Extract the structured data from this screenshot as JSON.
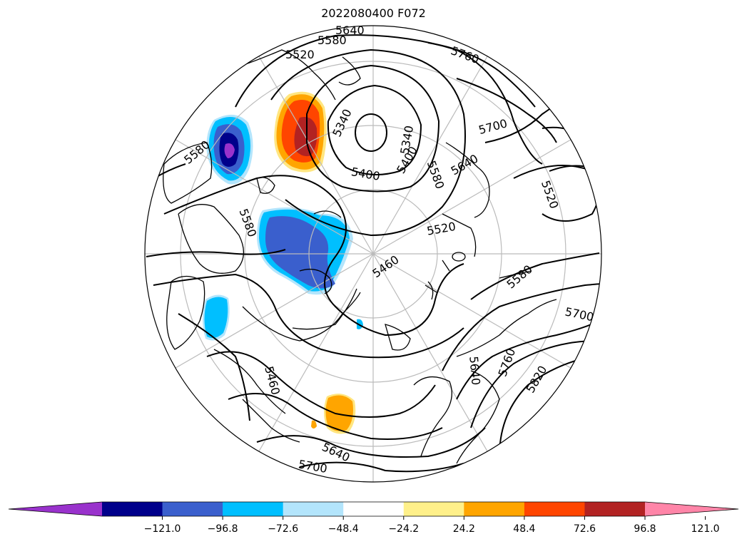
{
  "title": "2022080400 F072",
  "map": {
    "projection": "north-polar-stereographic",
    "contour_variable": "500 hPa geopotential height (m)",
    "fill_variable": "height anomaly",
    "graticule_color": "#bbbbbb",
    "coast_color": "#000000",
    "contour_color": "#000000"
  },
  "contour_labels": [
    "5640",
    "5580",
    "5520",
    "5340",
    "5340",
    "5400",
    "5400",
    "5700",
    "5760",
    "5640",
    "5580",
    "5520",
    "5520",
    "5460",
    "5580",
    "5700",
    "5640",
    "5760",
    "5820",
    "5460",
    "5640",
    "5700",
    "5580",
    "5580"
  ],
  "anomaly_blobs": [
    {
      "name": "positive-anomaly-north-pacific",
      "levels": [
        "#ffa500",
        "#ff4500",
        "#b22222"
      ]
    },
    {
      "name": "negative-anomaly-alaska",
      "levels": [
        "#00bfff",
        "#3a5fcd",
        "#00008b",
        "#9932cc"
      ]
    },
    {
      "name": "negative-anomaly-canadian-arctic",
      "levels": [
        "#00bfff",
        "#3a5fcd"
      ]
    },
    {
      "name": "negative-anomaly-hudson-bay",
      "levels": [
        "#00bfff"
      ]
    },
    {
      "name": "positive-anomaly-north-atlantic",
      "levels": [
        "#ffe680",
        "#ffa500"
      ]
    }
  ],
  "colorbar": {
    "colors": [
      "#9932cc",
      "#00008b",
      "#3a5fcd",
      "#00bfff",
      "#b3e5fc",
      "#ffffff",
      "#fff08a",
      "#ffa500",
      "#ff4500",
      "#b22222",
      "#ff85a8"
    ],
    "ticks": [
      "−121.0",
      "−96.8",
      "−72.6",
      "−48.4",
      "−24.2",
      "24.2",
      "48.4",
      "72.6",
      "96.8",
      "121.0"
    ],
    "extend": "both"
  }
}
